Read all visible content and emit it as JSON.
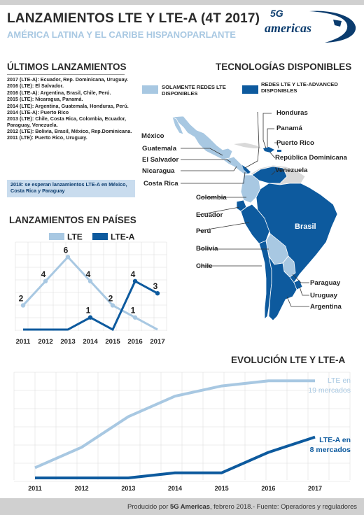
{
  "header": {
    "title": "LANZAMIENTOS LTE Y LTE-A (4T 2017)",
    "subtitle": "AMÉRICA LATINA Y EL CARIBE HISPANOPARLANTE",
    "logo_5g": "5G",
    "logo_text": "americas"
  },
  "launches": {
    "heading": "ÚLTIMOS LANZAMIENTOS",
    "items": [
      "2017 (LTE-A): Ecuador, Rep. Dominicana, Uruguay.",
      "2016 (LTE): El Salvador.",
      "2016 (LTE-A): Argentina, Brasil, Chile, Perú.",
      "2015 (LTE): Nicaragua, Panamá.",
      "2014 (LTE): Argentina, Guatemala, Honduras, Perú.",
      "2014 (LTE-A): Puerto Rico",
      "2013 (LTE): Chile, Costa Rica, Colombia, Ecuador,  Paraguay, Venezuela.",
      "2012 (LTE): Bolivia, Brasil, México, Rep.Dominicana.",
      "2011 (LTE): Puerto Rico, Uruguay."
    ],
    "note": "2018: se esperan lanzamientos LTE-A en México, Costa Rica y Paraguay"
  },
  "technologies": {
    "heading": "TECNOLOGÍAS DISPONIBLES",
    "legend_light": "SOLAMENTE REDES LTE DISPONIBLES",
    "legend_dark": "REDES LTE Y LTE-ADVANCED DISPONIBLES",
    "color_light": "#a8c8e2",
    "color_dark": "#0d5a9e",
    "labels": {
      "honduras": "Honduras",
      "panama": "Panamá",
      "mexico": "México",
      "puerto_rico": "Puerto Rico",
      "guatemala": "Guatemala",
      "rep_dominicana": "República Dominicana",
      "el_salvador": "El Salvador",
      "nicaragua": "Nicaragua",
      "venezuela": "Venezuela",
      "costa_rica": "Costa Rica",
      "colombia": "Colombia",
      "ecuador": "Ecuador",
      "peru": "Perú",
      "brasil": "Brasil",
      "bolivia": "Bolivia",
      "chile": "Chile",
      "paraguay": "Paraguay",
      "uruguay": "Uruguay",
      "argentina": "Argentina"
    }
  },
  "chart_data": [
    {
      "type": "line",
      "title": "LANZAMIENTOS EN PAÍSES",
      "categories": [
        "2011",
        "2012",
        "2013",
        "2014",
        "2015",
        "2016",
        "2017"
      ],
      "series": [
        {
          "name": "LTE",
          "color": "#a8c8e2",
          "values": [
            2,
            4,
            6,
            4,
            2,
            1,
            0
          ],
          "labels": [
            "2",
            "4",
            "6",
            "4",
            "2",
            "1",
            ""
          ]
        },
        {
          "name": "LTE-A",
          "color": "#0d5a9e",
          "values": [
            0,
            0,
            0,
            1,
            0,
            4,
            3
          ],
          "labels": [
            "",
            "",
            "",
            "1",
            "",
            "4",
            "3"
          ]
        }
      ],
      "ylim": [
        0,
        7
      ],
      "grid": true,
      "legend": "top-left"
    },
    {
      "type": "line",
      "title": "EVOLUCIÓN LTE Y LTE-A",
      "categories": [
        "2011",
        "2012",
        "2013",
        "2014",
        "2015",
        "2016",
        "2017"
      ],
      "series": [
        {
          "name": "LTE",
          "color": "#a8c8e2",
          "values": [
            2,
            6,
            12,
            16,
            18,
            19,
            19
          ],
          "end_label": [
            "LTE en",
            "19 mercados"
          ]
        },
        {
          "name": "LTE-A",
          "color": "#0d5a9e",
          "values": [
            0,
            0,
            0,
            1,
            1,
            5,
            8
          ],
          "end_label": [
            "LTE-A en",
            "8 mercados"
          ]
        }
      ],
      "ylim": [
        0,
        20
      ],
      "grid": true
    }
  ],
  "footer": {
    "prefix": "Producido por ",
    "brand": "5G Americas",
    "suffix": ", febrero 2018.- Fuente: Operadores y reguladores"
  }
}
